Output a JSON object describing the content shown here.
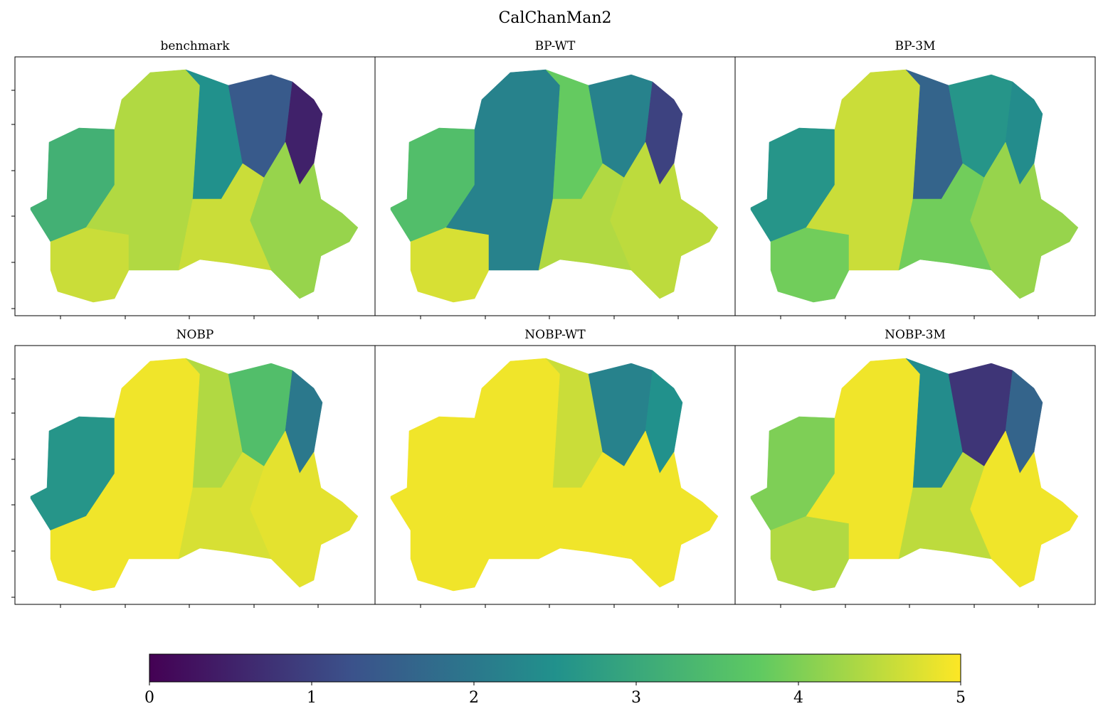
{
  "chart_data": {
    "type": "choropleth",
    "title": "CalChanMan2",
    "colormap": "viridis",
    "clim": [
      0,
      5
    ],
    "colorbar_ticks": [
      0,
      1,
      2,
      3,
      4,
      5
    ],
    "panels": [
      {
        "title": "benchmark",
        "values": [
          3.2,
          4.6,
          4.4,
          2.5,
          1.4,
          0.5,
          4.2,
          4.6
        ]
      },
      {
        "title": "BP-WT",
        "values": [
          3.5,
          4.7,
          2.2,
          3.8,
          2.2,
          1.0,
          4.5,
          4.4
        ]
      },
      {
        "title": "BP-3M",
        "values": [
          2.6,
          3.9,
          4.6,
          1.6,
          2.6,
          2.4,
          4.2,
          3.9
        ]
      },
      {
        "title": "NOBP",
        "values": [
          2.6,
          4.9,
          4.9,
          4.4,
          3.5,
          2.0,
          4.8,
          4.7
        ]
      },
      {
        "title": "NOBP-WT",
        "values": [
          4.9,
          4.9,
          4.9,
          4.6,
          2.2,
          2.5,
          4.9,
          4.9
        ]
      },
      {
        "title": "NOBP-3M",
        "values": [
          4.0,
          4.4,
          4.9,
          2.4,
          0.8,
          1.6,
          4.9,
          4.5
        ]
      }
    ]
  }
}
